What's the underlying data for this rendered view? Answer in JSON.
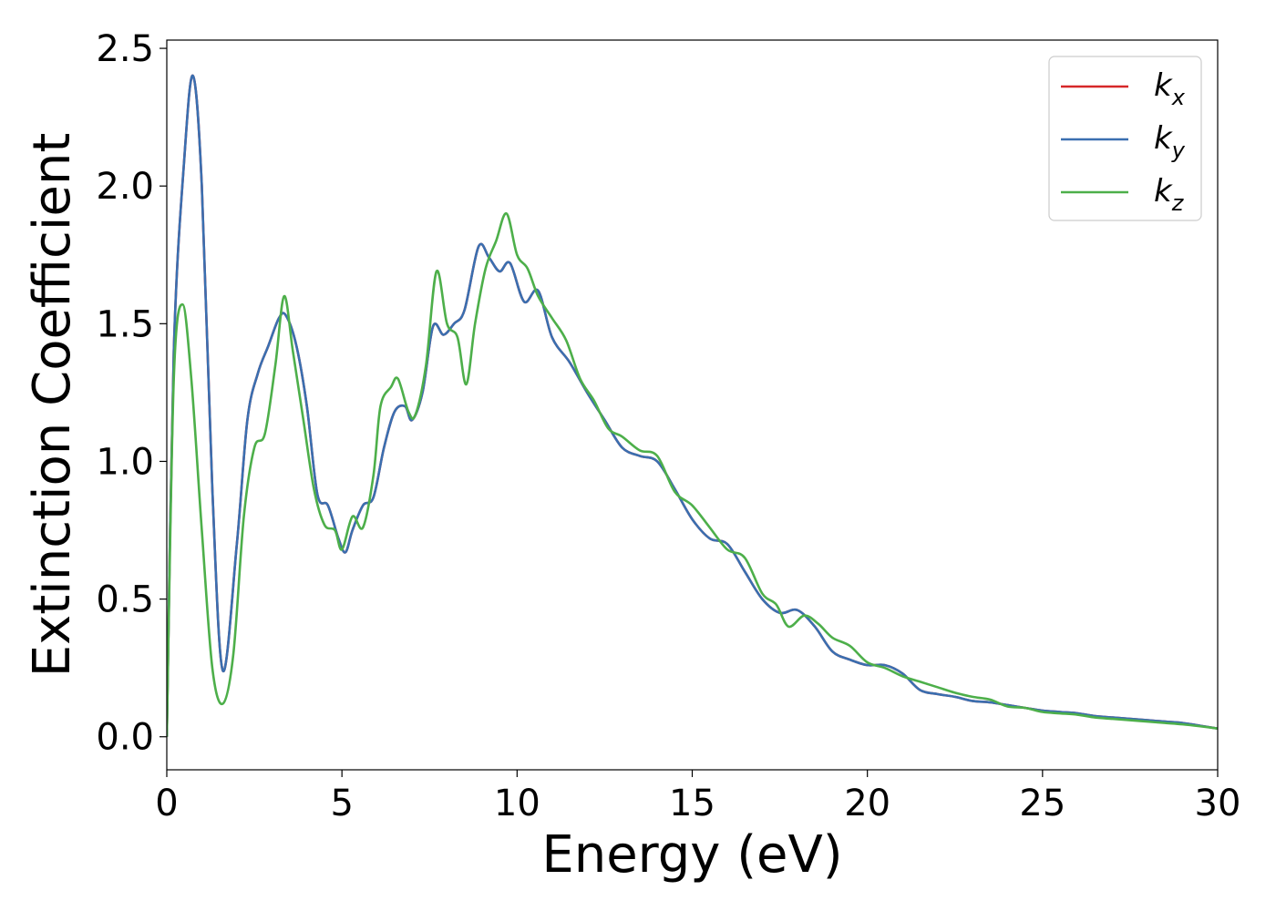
{
  "chart_data": {
    "type": "line",
    "xlabel": "Energy (eV)",
    "ylabel": "Extinction Coefficient",
    "xlim": [
      0,
      30
    ],
    "ylim": [
      -0.12,
      2.53
    ],
    "xticks": [
      "0",
      "5",
      "10",
      "15",
      "20",
      "25",
      "30"
    ],
    "yticks": [
      "0.0",
      "0.5",
      "1.0",
      "1.5",
      "2.0",
      "2.5"
    ],
    "grid": false,
    "legend_position": "top-right",
    "series": [
      {
        "name": "k_x",
        "legend": {
          "base": "k",
          "sub": "x"
        },
        "color": "#d62728",
        "points": [
          [
            0,
            0
          ],
          [
            0.2,
            1.4
          ],
          [
            0.5,
            2.1
          ],
          [
            0.75,
            2.4
          ],
          [
            1.0,
            2.0
          ],
          [
            1.3,
            0.9
          ],
          [
            1.6,
            0.24
          ],
          [
            2.0,
            0.7
          ],
          [
            2.3,
            1.15
          ],
          [
            2.6,
            1.32
          ],
          [
            2.9,
            1.42
          ],
          [
            3.2,
            1.52
          ],
          [
            3.4,
            1.53
          ],
          [
            3.7,
            1.42
          ],
          [
            4.0,
            1.2
          ],
          [
            4.3,
            0.88
          ],
          [
            4.6,
            0.84
          ],
          [
            4.9,
            0.72
          ],
          [
            5.1,
            0.67
          ],
          [
            5.3,
            0.75
          ],
          [
            5.6,
            0.84
          ],
          [
            5.9,
            0.87
          ],
          [
            6.2,
            1.05
          ],
          [
            6.5,
            1.18
          ],
          [
            6.8,
            1.2
          ],
          [
            7.0,
            1.15
          ],
          [
            7.3,
            1.25
          ],
          [
            7.6,
            1.49
          ],
          [
            7.9,
            1.46
          ],
          [
            8.2,
            1.5
          ],
          [
            8.5,
            1.55
          ],
          [
            8.9,
            1.78
          ],
          [
            9.2,
            1.74
          ],
          [
            9.5,
            1.69
          ],
          [
            9.8,
            1.72
          ],
          [
            10.2,
            1.58
          ],
          [
            10.6,
            1.62
          ],
          [
            11.0,
            1.45
          ],
          [
            11.5,
            1.36
          ],
          [
            12.0,
            1.25
          ],
          [
            12.5,
            1.15
          ],
          [
            13.0,
            1.05
          ],
          [
            13.5,
            1.02
          ],
          [
            14.0,
            1.0
          ],
          [
            14.5,
            0.9
          ],
          [
            15.0,
            0.79
          ],
          [
            15.5,
            0.72
          ],
          [
            16.0,
            0.7
          ],
          [
            16.5,
            0.6
          ],
          [
            17.0,
            0.5
          ],
          [
            17.5,
            0.45
          ],
          [
            18.0,
            0.46
          ],
          [
            18.5,
            0.4
          ],
          [
            19.0,
            0.31
          ],
          [
            19.5,
            0.28
          ],
          [
            20.0,
            0.26
          ],
          [
            20.5,
            0.26
          ],
          [
            21.0,
            0.23
          ],
          [
            21.5,
            0.17
          ],
          [
            22.0,
            0.155
          ],
          [
            22.5,
            0.145
          ],
          [
            23.0,
            0.13
          ],
          [
            23.5,
            0.125
          ],
          [
            24.0,
            0.115
          ],
          [
            24.5,
            0.105
          ],
          [
            25.0,
            0.095
          ],
          [
            25.5,
            0.09
          ],
          [
            26.0,
            0.085
          ],
          [
            26.5,
            0.075
          ],
          [
            27.0,
            0.07
          ],
          [
            27.5,
            0.065
          ],
          [
            28.0,
            0.06
          ],
          [
            28.5,
            0.055
          ],
          [
            29.0,
            0.05
          ],
          [
            29.5,
            0.04
          ],
          [
            30.0,
            0.03
          ]
        ]
      },
      {
        "name": "k_y",
        "legend": {
          "base": "k",
          "sub": "y"
        },
        "color": "#3a6fb0",
        "points": [
          [
            0,
            0
          ],
          [
            0.2,
            1.4
          ],
          [
            0.5,
            2.1
          ],
          [
            0.75,
            2.4
          ],
          [
            1.0,
            2.0
          ],
          [
            1.3,
            0.9
          ],
          [
            1.6,
            0.24
          ],
          [
            2.0,
            0.7
          ],
          [
            2.3,
            1.15
          ],
          [
            2.6,
            1.32
          ],
          [
            2.9,
            1.42
          ],
          [
            3.2,
            1.52
          ],
          [
            3.4,
            1.53
          ],
          [
            3.7,
            1.42
          ],
          [
            4.0,
            1.2
          ],
          [
            4.3,
            0.88
          ],
          [
            4.6,
            0.84
          ],
          [
            4.9,
            0.72
          ],
          [
            5.1,
            0.67
          ],
          [
            5.3,
            0.75
          ],
          [
            5.6,
            0.84
          ],
          [
            5.9,
            0.87
          ],
          [
            6.2,
            1.05
          ],
          [
            6.5,
            1.18
          ],
          [
            6.8,
            1.2
          ],
          [
            7.0,
            1.15
          ],
          [
            7.3,
            1.25
          ],
          [
            7.6,
            1.49
          ],
          [
            7.9,
            1.46
          ],
          [
            8.2,
            1.5
          ],
          [
            8.5,
            1.55
          ],
          [
            8.9,
            1.78
          ],
          [
            9.2,
            1.74
          ],
          [
            9.5,
            1.69
          ],
          [
            9.8,
            1.72
          ],
          [
            10.2,
            1.58
          ],
          [
            10.6,
            1.62
          ],
          [
            11.0,
            1.45
          ],
          [
            11.5,
            1.36
          ],
          [
            12.0,
            1.25
          ],
          [
            12.5,
            1.15
          ],
          [
            13.0,
            1.05
          ],
          [
            13.5,
            1.02
          ],
          [
            14.0,
            1.0
          ],
          [
            14.5,
            0.9
          ],
          [
            15.0,
            0.79
          ],
          [
            15.5,
            0.72
          ],
          [
            16.0,
            0.7
          ],
          [
            16.5,
            0.6
          ],
          [
            17.0,
            0.5
          ],
          [
            17.5,
            0.45
          ],
          [
            18.0,
            0.46
          ],
          [
            18.5,
            0.4
          ],
          [
            19.0,
            0.31
          ],
          [
            19.5,
            0.28
          ],
          [
            20.0,
            0.26
          ],
          [
            20.5,
            0.26
          ],
          [
            21.0,
            0.23
          ],
          [
            21.5,
            0.17
          ],
          [
            22.0,
            0.155
          ],
          [
            22.5,
            0.145
          ],
          [
            23.0,
            0.13
          ],
          [
            23.5,
            0.125
          ],
          [
            24.0,
            0.115
          ],
          [
            24.5,
            0.105
          ],
          [
            25.0,
            0.095
          ],
          [
            25.5,
            0.09
          ],
          [
            26.0,
            0.085
          ],
          [
            26.5,
            0.075
          ],
          [
            27.0,
            0.07
          ],
          [
            27.5,
            0.065
          ],
          [
            28.0,
            0.06
          ],
          [
            28.5,
            0.055
          ],
          [
            29.0,
            0.05
          ],
          [
            29.5,
            0.04
          ],
          [
            30.0,
            0.03
          ]
        ]
      },
      {
        "name": "k_z",
        "legend": {
          "base": "k",
          "sub": "z"
        },
        "color": "#4daf4a",
        "points": [
          [
            0,
            0
          ],
          [
            0.2,
            1.3
          ],
          [
            0.45,
            1.57
          ],
          [
            0.7,
            1.3
          ],
          [
            1.0,
            0.75
          ],
          [
            1.3,
            0.25
          ],
          [
            1.6,
            0.12
          ],
          [
            1.9,
            0.3
          ],
          [
            2.2,
            0.8
          ],
          [
            2.5,
            1.05
          ],
          [
            2.8,
            1.1
          ],
          [
            3.1,
            1.35
          ],
          [
            3.35,
            1.6
          ],
          [
            3.6,
            1.4
          ],
          [
            3.9,
            1.15
          ],
          [
            4.2,
            0.9
          ],
          [
            4.5,
            0.77
          ],
          [
            4.8,
            0.75
          ],
          [
            5.0,
            0.68
          ],
          [
            5.3,
            0.8
          ],
          [
            5.6,
            0.76
          ],
          [
            5.9,
            0.95
          ],
          [
            6.1,
            1.2
          ],
          [
            6.4,
            1.27
          ],
          [
            6.6,
            1.3
          ],
          [
            6.9,
            1.18
          ],
          [
            7.1,
            1.17
          ],
          [
            7.4,
            1.35
          ],
          [
            7.7,
            1.69
          ],
          [
            8.0,
            1.5
          ],
          [
            8.3,
            1.45
          ],
          [
            8.55,
            1.28
          ],
          [
            8.8,
            1.5
          ],
          [
            9.1,
            1.7
          ],
          [
            9.4,
            1.8
          ],
          [
            9.7,
            1.9
          ],
          [
            10.0,
            1.75
          ],
          [
            10.3,
            1.7
          ],
          [
            10.6,
            1.6
          ],
          [
            11.0,
            1.52
          ],
          [
            11.4,
            1.44
          ],
          [
            11.8,
            1.3
          ],
          [
            12.2,
            1.22
          ],
          [
            12.6,
            1.12
          ],
          [
            13.0,
            1.09
          ],
          [
            13.5,
            1.04
          ],
          [
            14.0,
            1.02
          ],
          [
            14.5,
            0.89
          ],
          [
            15.0,
            0.84
          ],
          [
            15.5,
            0.76
          ],
          [
            16.0,
            0.68
          ],
          [
            16.5,
            0.65
          ],
          [
            17.0,
            0.52
          ],
          [
            17.4,
            0.48
          ],
          [
            17.75,
            0.4
          ],
          [
            18.2,
            0.44
          ],
          [
            18.6,
            0.41
          ],
          [
            19.0,
            0.36
          ],
          [
            19.5,
            0.33
          ],
          [
            20.0,
            0.27
          ],
          [
            20.5,
            0.25
          ],
          [
            21.0,
            0.22
          ],
          [
            21.5,
            0.2
          ],
          [
            22.0,
            0.18
          ],
          [
            22.5,
            0.16
          ],
          [
            23.0,
            0.145
          ],
          [
            23.5,
            0.135
          ],
          [
            24.0,
            0.11
          ],
          [
            24.5,
            0.105
          ],
          [
            25.0,
            0.09
          ],
          [
            25.5,
            0.085
          ],
          [
            26.0,
            0.08
          ],
          [
            26.5,
            0.07
          ],
          [
            27.0,
            0.065
          ],
          [
            27.5,
            0.06
          ],
          [
            28.0,
            0.055
          ],
          [
            28.5,
            0.05
          ],
          [
            29.0,
            0.045
          ],
          [
            29.5,
            0.038
          ],
          [
            30.0,
            0.03
          ]
        ]
      }
    ]
  }
}
